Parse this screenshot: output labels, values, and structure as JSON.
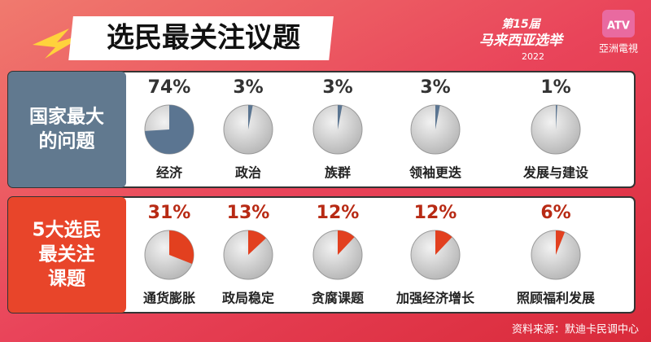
{
  "header": {
    "title": "选民最关注议题",
    "logo_edition": "第15届",
    "logo_title": "马来西亚选举",
    "logo_year": "2022",
    "brand": "ATV",
    "brand_name": "亞洲電視"
  },
  "footer": {
    "source": "资料来源：默迪卡民调中心"
  },
  "chart_data": [
    {
      "type": "pie",
      "title_lines": [
        "国家最大",
        "的问题"
      ],
      "color": "#5b7591",
      "panel_color": "#61798f",
      "categories": [
        "经济",
        "政治",
        "族群",
        "领袖更迭",
        "发展与建设"
      ],
      "values": [
        74,
        3,
        3,
        3,
        1
      ],
      "value_labels": [
        "74%",
        "3%",
        "3%",
        "3%",
        "1%"
      ]
    },
    {
      "type": "pie",
      "title_lines": [
        "5大选民",
        "最关注",
        "课题"
      ],
      "color": "#e2401f",
      "panel_color": "#e8452a",
      "categories": [
        "通货膨胀",
        "政局稳定",
        "贪腐课题",
        "加强经济增长",
        "照顾福利发展"
      ],
      "values": [
        31,
        13,
        12,
        12,
        6
      ],
      "value_labels": [
        "31%",
        "13%",
        "12%",
        "12%",
        "6%"
      ]
    }
  ]
}
